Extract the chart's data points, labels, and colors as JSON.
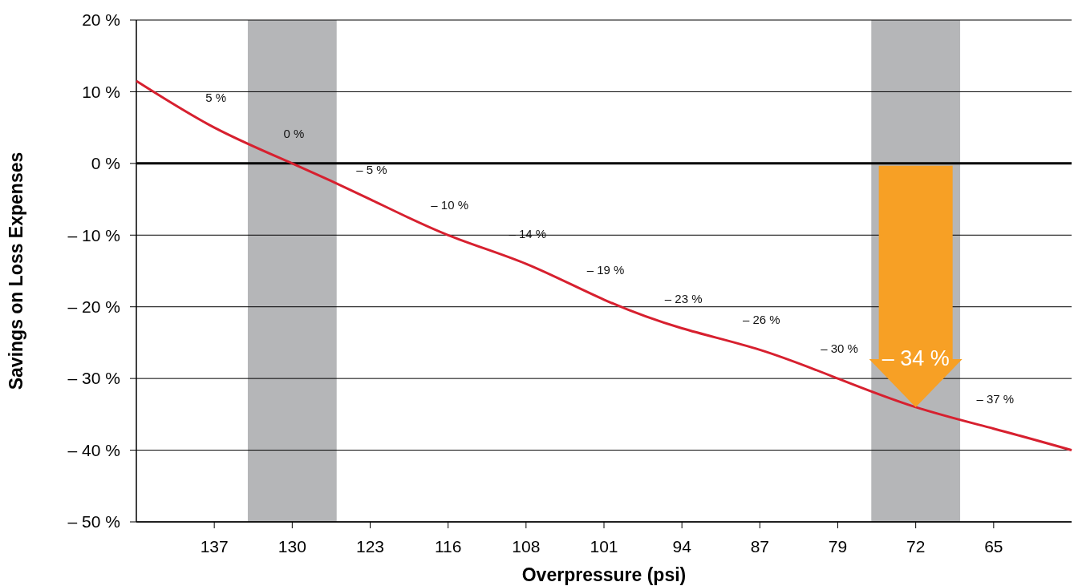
{
  "chart_data": {
    "type": "line",
    "xlabel": "Overpressure (psi)",
    "ylabel": "Savings on Loss Expenses",
    "categories": [
      null,
      "137",
      "130",
      "123",
      "116",
      "108",
      "101",
      "94",
      "87",
      "79",
      "72",
      "65",
      null
    ],
    "series": [
      {
        "color": "#d7202f",
        "values": [
          11.5,
          5,
          0,
          -5,
          -10,
          -14,
          -19,
          -23,
          -26,
          -30,
          -34,
          -37,
          -40
        ],
        "value_labels": [
          null,
          "5 %",
          "0 %",
          "– 5 %",
          "– 10 %",
          "– 14 %",
          "– 19 %",
          "– 23 %",
          "– 26 %",
          "– 30 %",
          null,
          "– 37 %",
          null
        ]
      }
    ],
    "ylim": [
      -50,
      20
    ],
    "yticks": [
      {
        "value": 20,
        "label": "20 %"
      },
      {
        "value": 10,
        "label": "10 %"
      },
      {
        "value": 0,
        "label": "0 %"
      },
      {
        "value": -10,
        "label": "– 10 %"
      },
      {
        "value": -20,
        "label": "– 20 %"
      },
      {
        "value": -30,
        "label": "– 30 %"
      },
      {
        "value": -40,
        "label": "– 40 %"
      },
      {
        "value": -50,
        "label": "– 50 %"
      }
    ],
    "grid": "y",
    "marker": "none",
    "line_style": "solid",
    "ref_lines": [
      {
        "axis": "y",
        "value": 0,
        "color": "#000000"
      }
    ],
    "bands": [
      {
        "axis": "x",
        "from": "130",
        "to": "130",
        "color": "#b5b6b8"
      },
      {
        "axis": "x",
        "from": "72",
        "to": "72",
        "color": "#b5b6b8"
      }
    ],
    "annotations": [
      {
        "text": "– 34 %",
        "x": "72",
        "y": -34
      }
    ]
  }
}
